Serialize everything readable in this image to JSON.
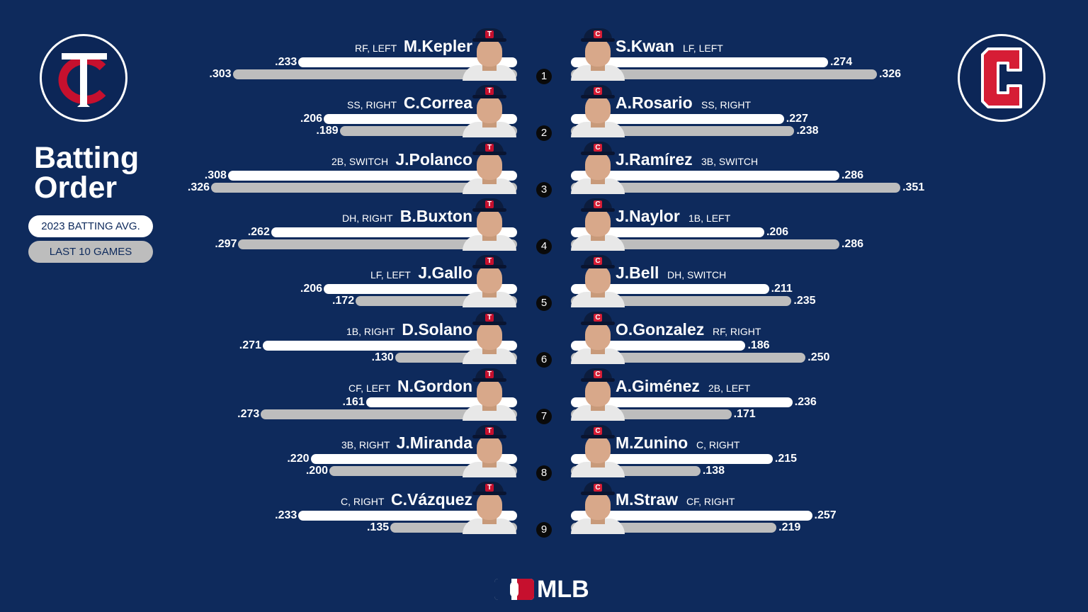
{
  "title": "Batting Order",
  "legend": {
    "season_label": "2023 BATTING AVG.",
    "recent_label": "LAST 10 GAMES"
  },
  "colors": {
    "background": "#0e2a5c",
    "season_bar": "#ffffff",
    "recent_bar": "#bdbdbd",
    "twins_red": "#c6102e",
    "guardians_red": "#d61d35"
  },
  "footer_logo": "MLB",
  "logos": {
    "left": "tc-twins-logo",
    "right": "c-guardians-logo"
  },
  "chart_data": {
    "type": "bar",
    "orientation": "horizontal",
    "categories": [
      "1",
      "2",
      "3",
      "4",
      "5",
      "6",
      "7",
      "8",
      "9"
    ],
    "series_names": [
      "2023 BATTING AVG.",
      "LAST 10 GAMES"
    ],
    "away": [
      {
        "order": "1",
        "name": "M.Kepler",
        "pos": "RF, LEFT",
        "season": ".233",
        "recent": ".303"
      },
      {
        "order": "2",
        "name": "C.Correa",
        "pos": "SS, RIGHT",
        "season": ".206",
        "recent": ".189"
      },
      {
        "order": "3",
        "name": "J.Polanco",
        "pos": "2B, SWITCH",
        "season": ".308",
        "recent": ".326"
      },
      {
        "order": "4",
        "name": "B.Buxton",
        "pos": "DH, RIGHT",
        "season": ".262",
        "recent": ".297"
      },
      {
        "order": "5",
        "name": "J.Gallo",
        "pos": "LF, LEFT",
        "season": ".206",
        "recent": ".172"
      },
      {
        "order": "6",
        "name": "D.Solano",
        "pos": "1B, RIGHT",
        "season": ".271",
        "recent": ".130"
      },
      {
        "order": "7",
        "name": "N.Gordon",
        "pos": "CF, LEFT",
        "season": ".161",
        "recent": ".273"
      },
      {
        "order": "8",
        "name": "J.Miranda",
        "pos": "3B, RIGHT",
        "season": ".220",
        "recent": ".200"
      },
      {
        "order": "9",
        "name": "C.Vázquez",
        "pos": "C, RIGHT",
        "season": ".233",
        "recent": ".135"
      }
    ],
    "home": [
      {
        "order": "1",
        "name": "S.Kwan",
        "pos": "LF, LEFT",
        "season": ".274",
        "recent": ".326"
      },
      {
        "order": "2",
        "name": "A.Rosario",
        "pos": "SS, RIGHT",
        "season": ".227",
        "recent": ".238"
      },
      {
        "order": "3",
        "name": "J.Ramírez",
        "pos": "3B, SWITCH",
        "season": ".286",
        "recent": ".351"
      },
      {
        "order": "4",
        "name": "J.Naylor",
        "pos": "1B, LEFT",
        "season": ".206",
        "recent": ".286"
      },
      {
        "order": "5",
        "name": "J.Bell",
        "pos": "DH, SWITCH",
        "season": ".211",
        "recent": ".235"
      },
      {
        "order": "6",
        "name": "O.Gonzalez",
        "pos": "RF, RIGHT",
        "season": ".186",
        "recent": ".250"
      },
      {
        "order": "7",
        "name": "A.Giménez",
        "pos": "2B, LEFT",
        "season": ".236",
        "recent": ".171"
      },
      {
        "order": "8",
        "name": "M.Zunino",
        "pos": "C, RIGHT",
        "season": ".215",
        "recent": ".138"
      },
      {
        "order": "9",
        "name": "M.Straw",
        "pos": "CF, RIGHT",
        "season": ".257",
        "recent": ".219"
      }
    ]
  }
}
